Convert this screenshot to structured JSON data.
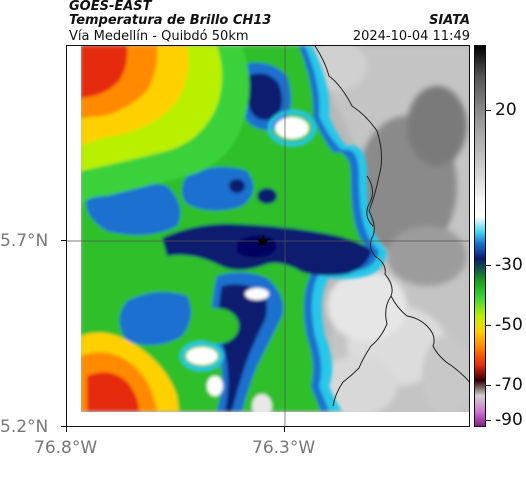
{
  "header": {
    "satellite": "GOES-EAST",
    "product": "Temperatura de Brillo CH13",
    "region": "Vía Medellín - Quibdó 50km",
    "agency": "SIATA",
    "timestamp": "2024-10-04 11:49"
  },
  "axes": {
    "lat_labels": [
      "5.7°N",
      "5.2°N"
    ],
    "lon_labels": [
      "76.8°W",
      "76.3°W"
    ]
  },
  "colorbar": {
    "ticks": [
      "20",
      "-30",
      "-50",
      "-70",
      "-90"
    ]
  },
  "colors": {
    "deep_cold": "#0a1a6e",
    "cold_blue": "#1c6fd0",
    "cyan": "#27c7e8",
    "green": "#2fbf2a",
    "yellow": "#e6f000",
    "orange": "#ff9a00",
    "red": "#e52a10",
    "gray": "#a9a9a9"
  }
}
